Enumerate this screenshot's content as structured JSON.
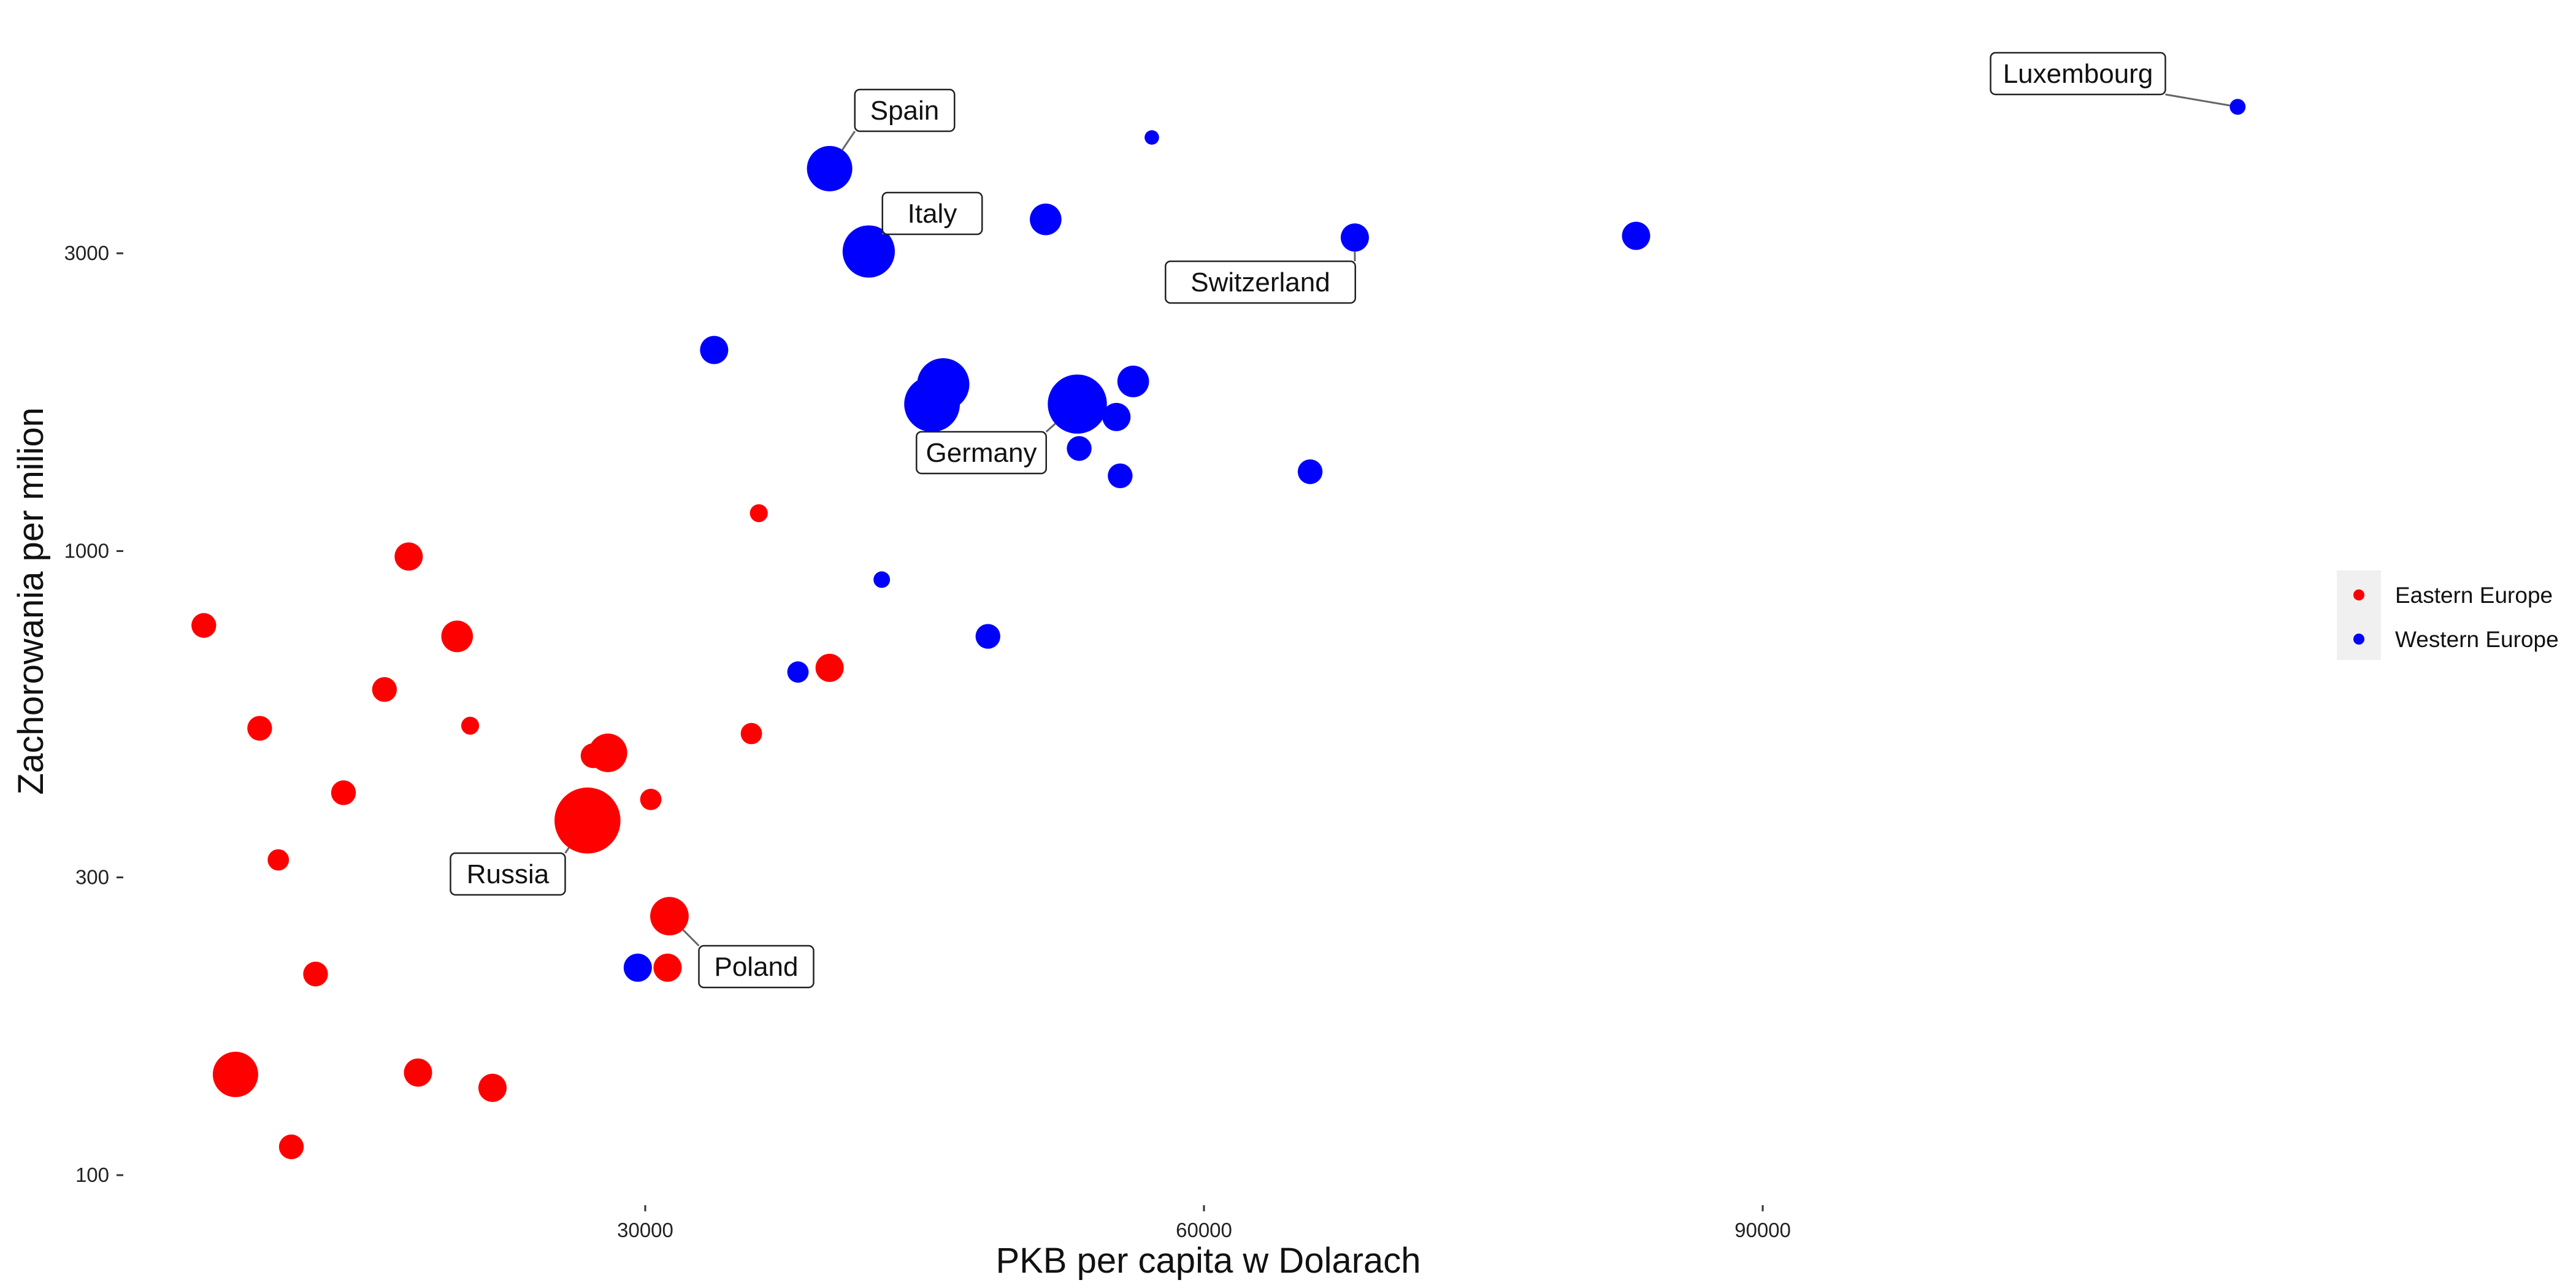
{
  "chart_data": {
    "type": "scatter",
    "title": "",
    "xlabel": "PKB per capita w Dolarach",
    "ylabel": "Zachorowania per milion",
    "x_ticks": [
      30000,
      60000,
      90000
    ],
    "y_ticks": [
      100,
      300,
      1000,
      3000
    ],
    "y_scale": "log",
    "xlim": [
      2000,
      128000
    ],
    "ylim": [
      90,
      7000
    ],
    "grid": false,
    "legend_position": "right",
    "colors": {
      "Eastern Europe": "#ff0000",
      "Western Europe": "#0000ff"
    },
    "series": [
      {
        "name": "Eastern Europe",
        "points": [
          {
            "x": 6300,
            "y": 760,
            "size": 2
          },
          {
            "x": 9300,
            "y": 520,
            "size": 2
          },
          {
            "x": 8000,
            "y": 145,
            "size": 5
          },
          {
            "x": 10300,
            "y": 320,
            "size": 1.5
          },
          {
            "x": 11000,
            "y": 111,
            "size": 2
          },
          {
            "x": 12300,
            "y": 210,
            "size": 2
          },
          {
            "x": 13800,
            "y": 410,
            "size": 2
          },
          {
            "x": 16000,
            "y": 600,
            "size": 2
          },
          {
            "x": 17300,
            "y": 980,
            "size": 2.5
          },
          {
            "x": 17800,
            "y": 146,
            "size": 2.5
          },
          {
            "x": 19900,
            "y": 730,
            "size": 3
          },
          {
            "x": 20600,
            "y": 525,
            "size": 1
          },
          {
            "x": 21800,
            "y": 138,
            "size": 2.5
          },
          {
            "x": 27200,
            "y": 470,
            "size": 2
          },
          {
            "x": 26900,
            "y": 370,
            "size": 8
          },
          {
            "x": 28000,
            "y": 475,
            "size": 4
          },
          {
            "x": 30300,
            "y": 400,
            "size": 1.5
          },
          {
            "x": 31200,
            "y": 215,
            "size": 2.5
          },
          {
            "x": 31300,
            "y": 260,
            "size": 4
          },
          {
            "x": 35700,
            "y": 510,
            "size": 1.5
          },
          {
            "x": 36100,
            "y": 1150,
            "size": 1
          },
          {
            "x": 39900,
            "y": 650,
            "size": 2.5
          }
        ]
      },
      {
        "name": "Western Europe",
        "points": [
          {
            "x": 29600,
            "y": 215,
            "size": 2.5
          },
          {
            "x": 33700,
            "y": 2100,
            "size": 2.5
          },
          {
            "x": 38200,
            "y": 640,
            "size": 1.5
          },
          {
            "x": 39900,
            "y": 4100,
            "size": 5
          },
          {
            "x": 42000,
            "y": 3020,
            "size": 6
          },
          {
            "x": 42700,
            "y": 900,
            "size": 0.8
          },
          {
            "x": 45400,
            "y": 1720,
            "size": 6.5
          },
          {
            "x": 46000,
            "y": 1850,
            "size": 6
          },
          {
            "x": 48400,
            "y": 730,
            "size": 2
          },
          {
            "x": 51500,
            "y": 3400,
            "size": 3
          },
          {
            "x": 53200,
            "y": 1720,
            "size": 7
          },
          {
            "x": 53300,
            "y": 1460,
            "size": 2
          },
          {
            "x": 55300,
            "y": 1640,
            "size": 2.5
          },
          {
            "x": 55500,
            "y": 1320,
            "size": 2
          },
          {
            "x": 56200,
            "y": 1870,
            "size": 3
          },
          {
            "x": 57200,
            "y": 4600,
            "size": 0.5
          },
          {
            "x": 65700,
            "y": 1340,
            "size": 2
          },
          {
            "x": 68100,
            "y": 3180,
            "size": 2.5
          },
          {
            "x": 83200,
            "y": 3200,
            "size": 2.5
          },
          {
            "x": 115500,
            "y": 5150,
            "size": 0.7
          }
        ]
      }
    ],
    "annotations": [
      {
        "label": "Spain",
        "x": 39900,
        "y": 4100
      },
      {
        "label": "Italy",
        "x": 42000,
        "y": 3020
      },
      {
        "label": "Switzerland",
        "x": 68100,
        "y": 3180
      },
      {
        "label": "Germany",
        "x": 53200,
        "y": 1720
      },
      {
        "label": "Russia",
        "x": 26900,
        "y": 370
      },
      {
        "label": "Poland",
        "x": 31300,
        "y": 260
      },
      {
        "label": "Luxembourg",
        "x": 115500,
        "y": 5150
      }
    ]
  }
}
